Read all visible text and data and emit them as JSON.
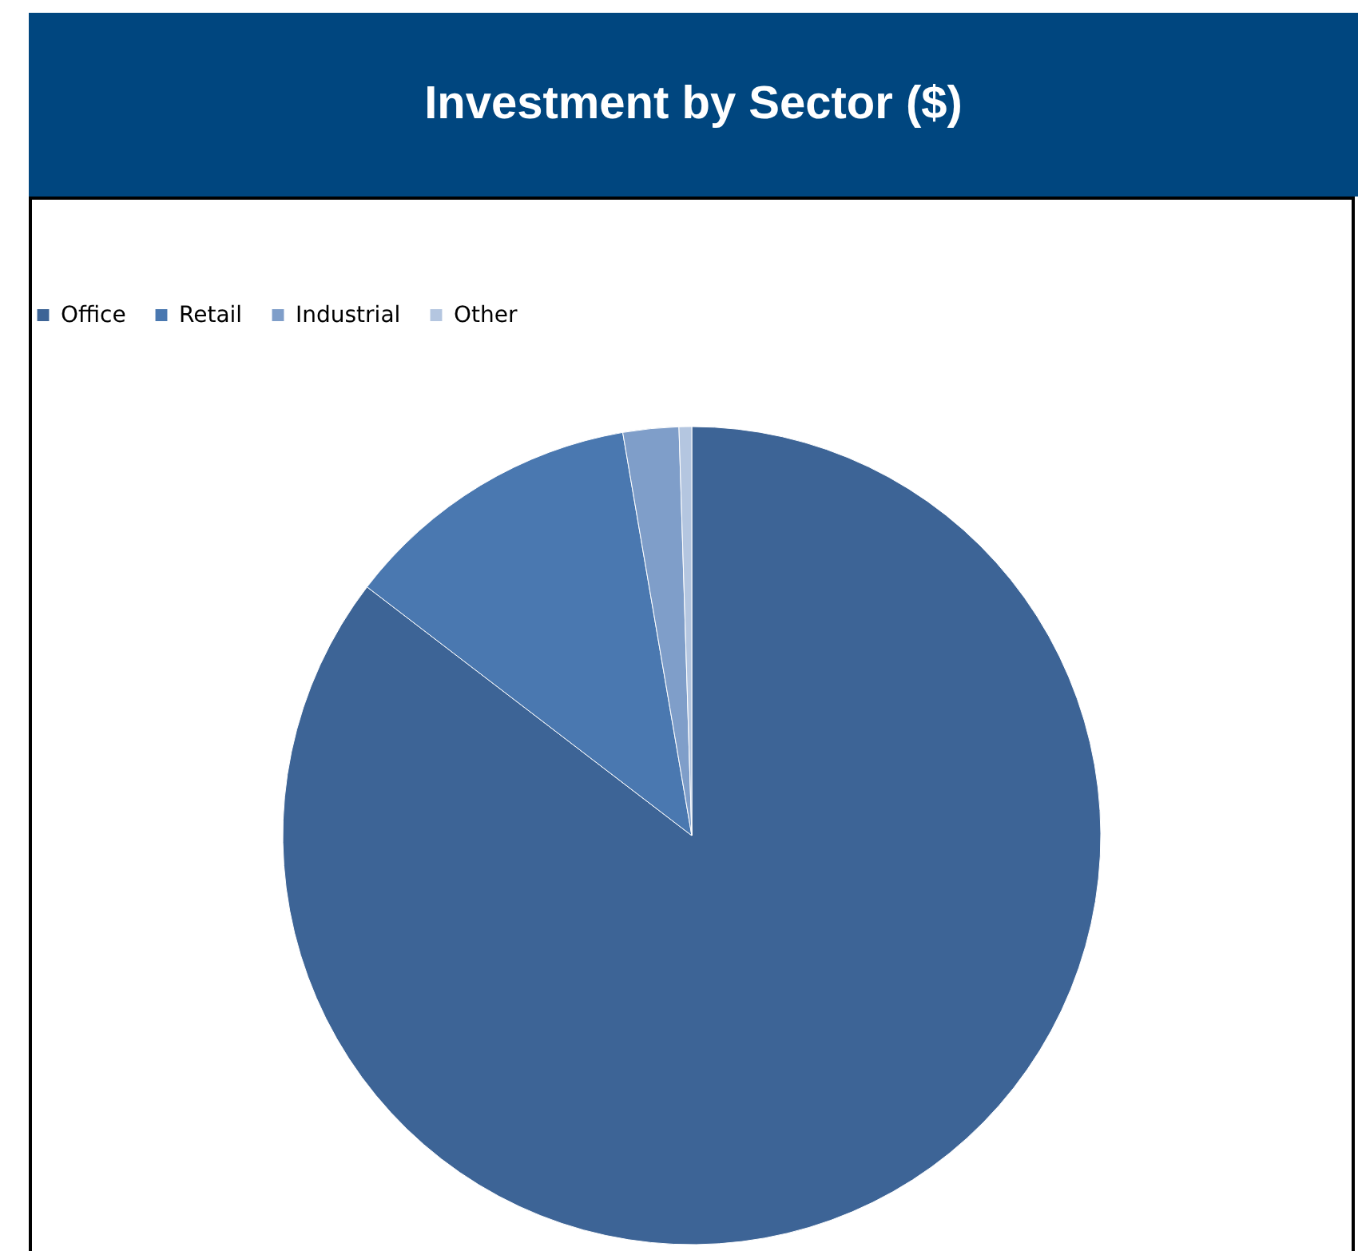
{
  "chart_data": {
    "type": "pie",
    "title": "Investment by Sector ($)",
    "categories": [
      "Office",
      "Retail",
      "Industrial",
      "Other"
    ],
    "values": [
      85.4,
      11.9,
      2.2,
      0.5
    ],
    "colors": [
      "#3d6496",
      "#4a78b0",
      "#7f9ec9",
      "#b4c6e0"
    ],
    "legend": "top"
  }
}
